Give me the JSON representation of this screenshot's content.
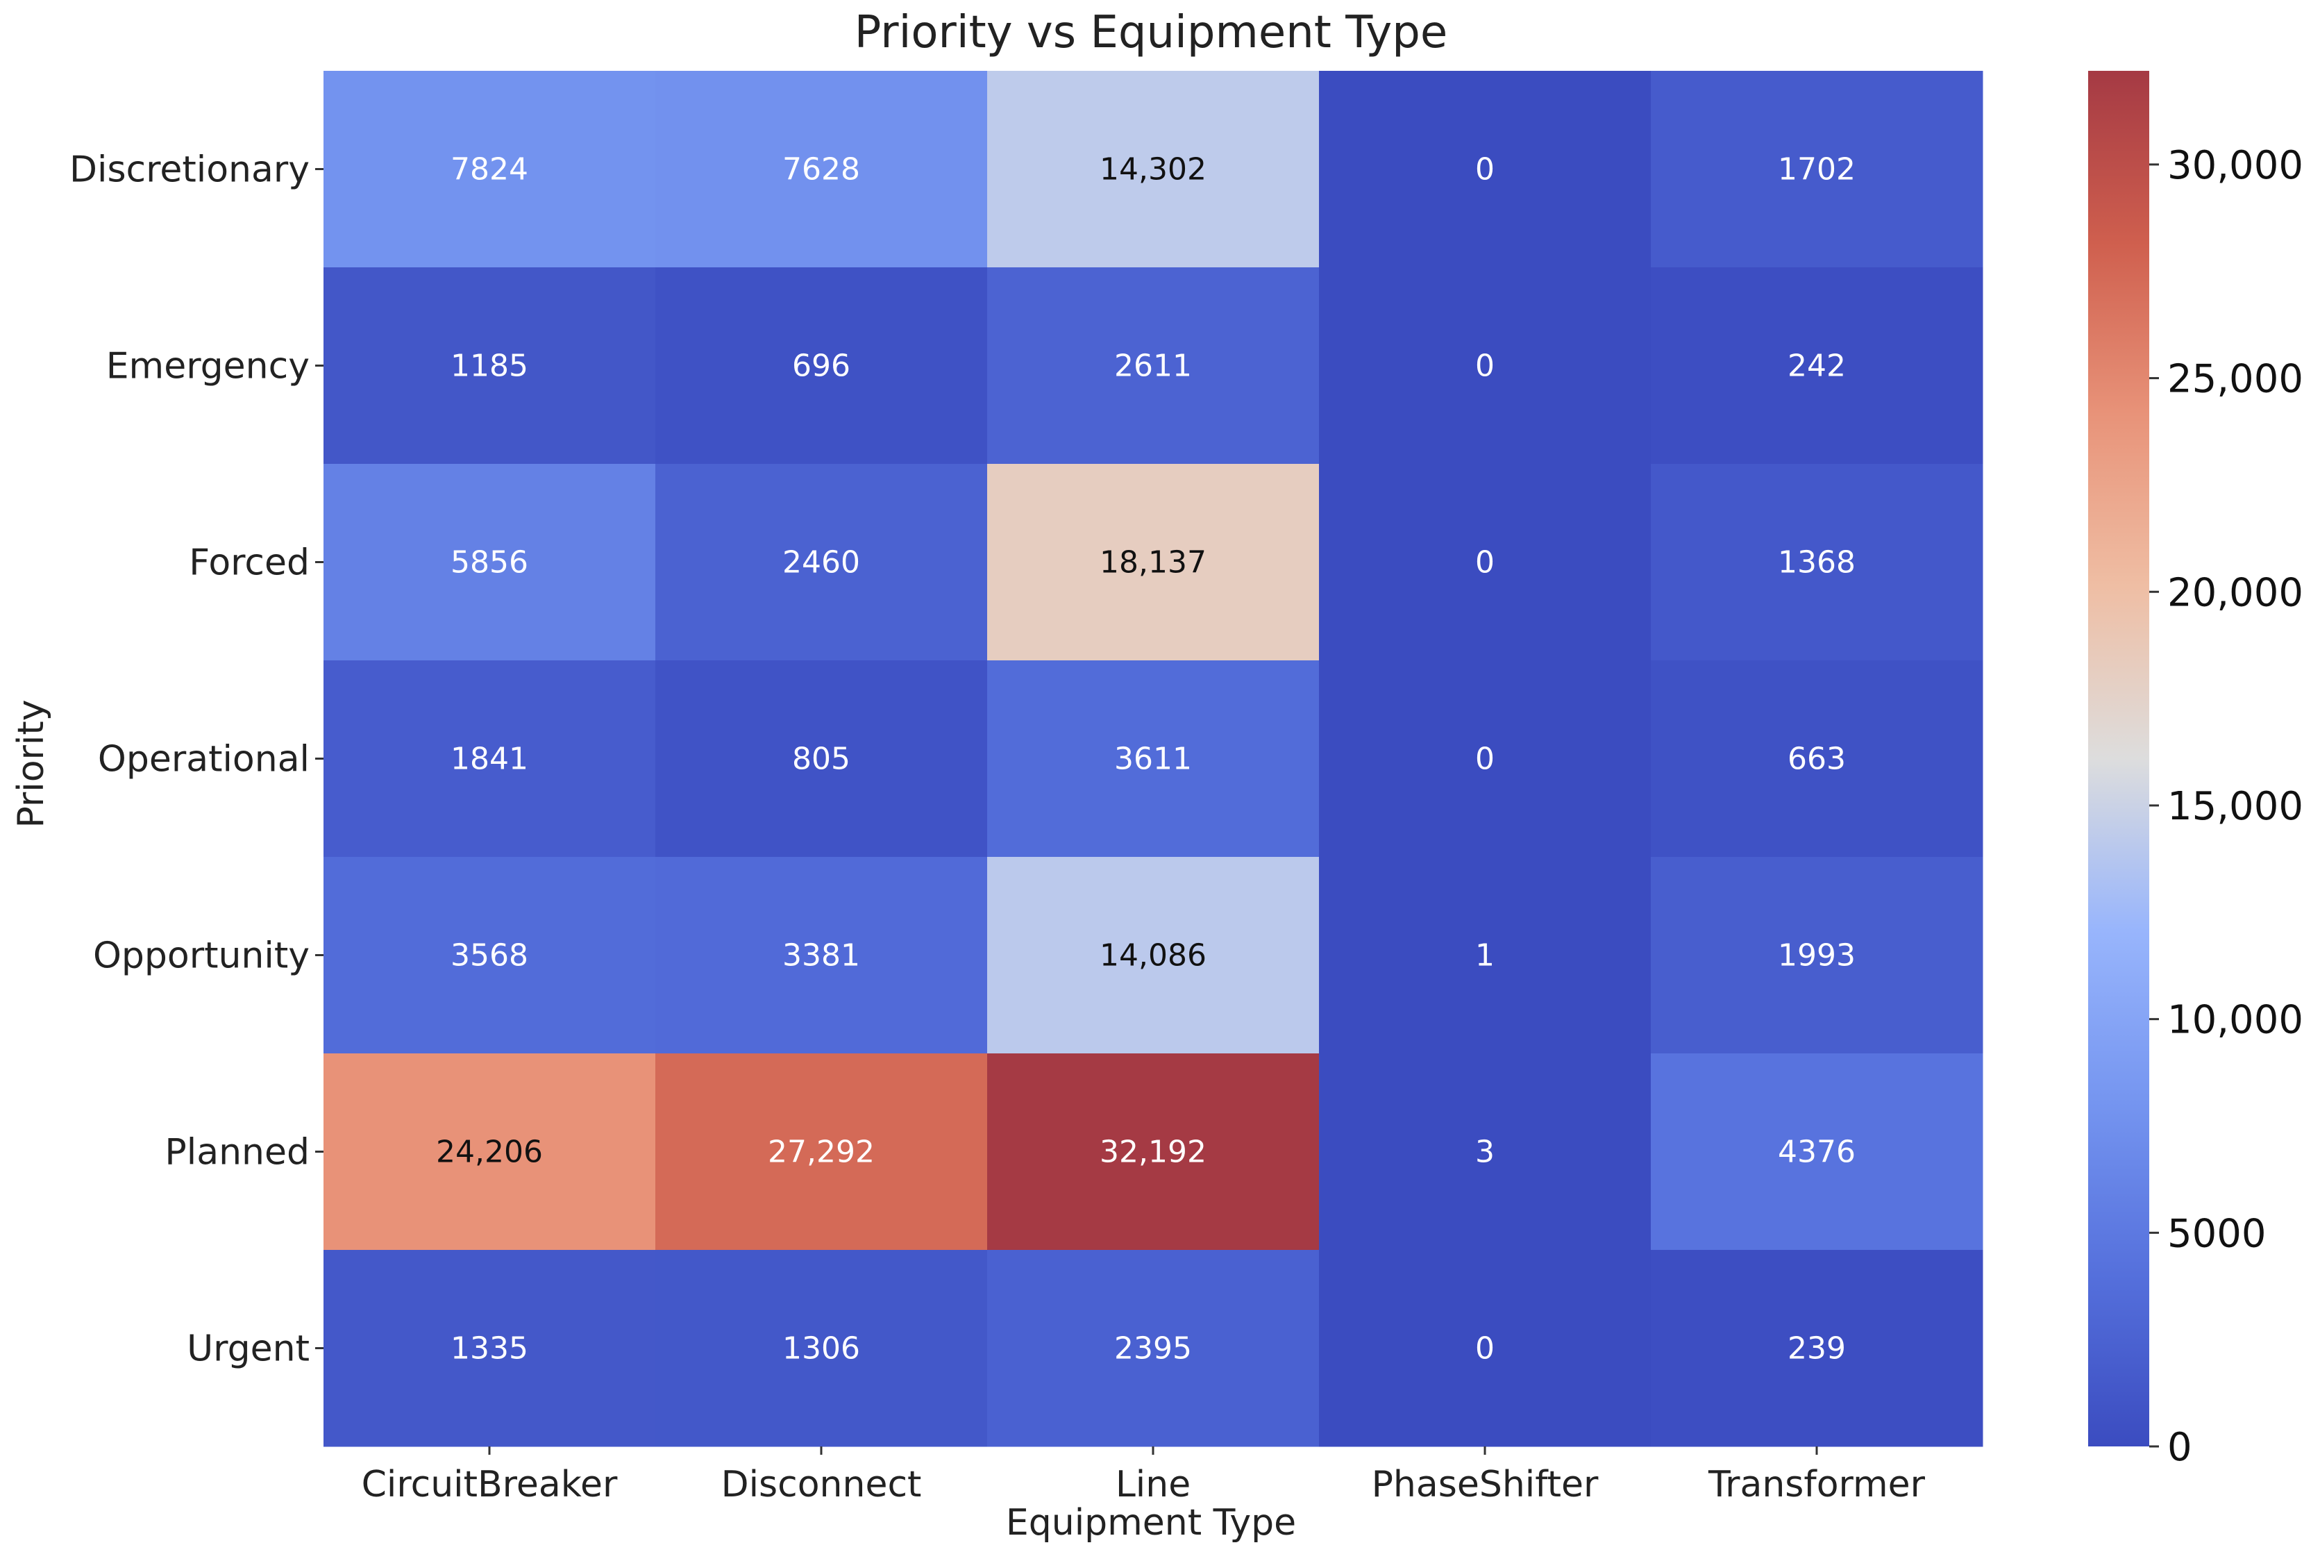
{
  "chart_data": {
    "type": "heatmap",
    "title": "Priority vs Equipment Type",
    "xlabel": "Equipment Type",
    "ylabel": "Priority",
    "x_categories": [
      "CircuitBreaker",
      "Disconnect",
      "Line",
      "PhaseShifter",
      "Transformer"
    ],
    "y_categories": [
      "Discretionary",
      "Emergency",
      "Forced",
      "Operational",
      "Opportunity",
      "Planned",
      "Urgent"
    ],
    "values": [
      [
        7824,
        7628,
        14302,
        0,
        1702
      ],
      [
        1185,
        696,
        2611,
        0,
        242
      ],
      [
        5856,
        2460,
        18137,
        0,
        1368
      ],
      [
        1841,
        805,
        3611,
        0,
        663
      ],
      [
        3568,
        3381,
        14086,
        1,
        1993
      ],
      [
        24206,
        27292,
        32192,
        3,
        4376
      ],
      [
        1335,
        1306,
        2395,
        0,
        239
      ]
    ],
    "cell_labels": [
      [
        "7824",
        "7628",
        "14,302",
        "0",
        "1702"
      ],
      [
        "1185",
        "696",
        "2611",
        "0",
        "242"
      ],
      [
        "5856",
        "2460",
        "18,137",
        "0",
        "1368"
      ],
      [
        "1841",
        "805",
        "3611",
        "0",
        "663"
      ],
      [
        "3568",
        "3381",
        "14,086",
        "1",
        "1993"
      ],
      [
        "24,206",
        "27,292",
        "32,192",
        "3",
        "4376"
      ],
      [
        "1335",
        "1306",
        "2395",
        "0",
        "239"
      ]
    ],
    "colormap": "coolwarm",
    "value_range": [
      0,
      32192
    ],
    "colorbar": {
      "ticks": [
        0,
        5000,
        10000,
        15000,
        20000,
        25000,
        30000
      ],
      "tick_labels": [
        "0",
        "5000",
        "10,000",
        "15,000",
        "20,000",
        "25,000",
        "30,000"
      ]
    },
    "colors": {
      "low": "#3b4cc0",
      "mid": "#dddddd",
      "high": "#b40426"
    }
  }
}
